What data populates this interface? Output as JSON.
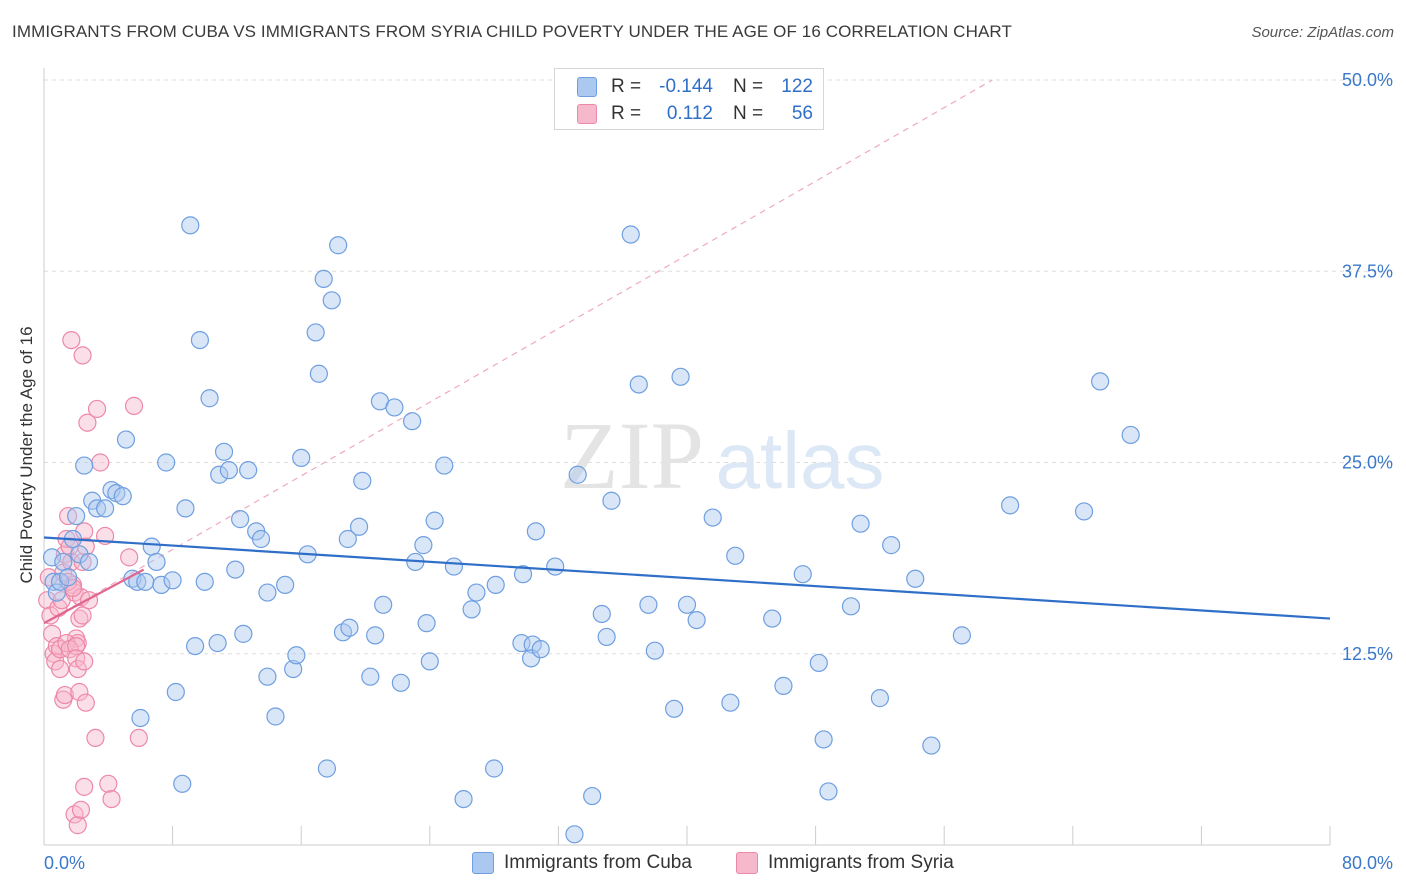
{
  "title": "IMMIGRANTS FROM CUBA VS IMMIGRANTS FROM SYRIA CHILD POVERTY UNDER THE AGE OF 16 CORRELATION CHART",
  "source": "Source: ZipAtlas.com",
  "watermark": {
    "zip": "ZIP",
    "atlas": "atlas"
  },
  "colors": {
    "cuba_fill": "#aac8f0",
    "cuba_stroke": "#6f9fe0",
    "cuba_line": "#2f6fc8",
    "syria_fill": "#f6b8cb",
    "syria_stroke": "#ee88a8",
    "syria_line": "#e0668e",
    "axis_text": "#3a78c9",
    "grid": "#dddddd"
  },
  "legend": {
    "rows": [
      {
        "r_label": "R =",
        "r_value": "-0.144",
        "n_label": "N =",
        "n_value": "122"
      },
      {
        "r_label": "R =",
        "r_value": "0.112",
        "n_label": "N =",
        "n_value": "56"
      }
    ]
  },
  "bottom_legend": [
    "Immigrants from Cuba",
    "Immigrants from Syria"
  ],
  "chart_data": {
    "type": "scatter",
    "title": "IMMIGRANTS FROM CUBA VS IMMIGRANTS FROM SYRIA CHILD POVERTY UNDER THE AGE OF 16 CORRELATION CHART",
    "xlabel": "",
    "ylabel": "Child Poverty Under the Age of 16",
    "xlim": [
      0,
      80
    ],
    "ylim": [
      0,
      50
    ],
    "x_tick_labels": [
      "0.0%",
      "80.0%"
    ],
    "y_ticks": [
      12.5,
      25.0,
      37.5,
      50.0
    ],
    "y_tick_labels": [
      "12.5%",
      "25.0%",
      "37.5%",
      "50.0%"
    ],
    "grid": true,
    "legend_position": "top-center",
    "series": [
      {
        "name": "Immigrants from Cuba",
        "trend": {
          "x": [
            0,
            80
          ],
          "y": [
            20.1,
            14.8
          ]
        },
        "points": [
          [
            0.5,
            18.8
          ],
          [
            0.6,
            17.2
          ],
          [
            0.8,
            16.5
          ],
          [
            1.0,
            17.2
          ],
          [
            1.2,
            18.5
          ],
          [
            1.5,
            17.5
          ],
          [
            1.8,
            20.0
          ],
          [
            2.0,
            21.5
          ],
          [
            2.2,
            19.0
          ],
          [
            2.5,
            24.8
          ],
          [
            2.8,
            18.5
          ],
          [
            3.0,
            22.5
          ],
          [
            3.3,
            22.0
          ],
          [
            3.8,
            22.0
          ],
          [
            4.2,
            23.2
          ],
          [
            4.5,
            23.0
          ],
          [
            4.9,
            22.8
          ],
          [
            5.1,
            26.5
          ],
          [
            5.5,
            17.4
          ],
          [
            5.8,
            17.2
          ],
          [
            6.0,
            8.3
          ],
          [
            6.3,
            17.2
          ],
          [
            6.7,
            19.5
          ],
          [
            7.0,
            18.5
          ],
          [
            7.3,
            17.0
          ],
          [
            7.6,
            25.0
          ],
          [
            8.0,
            17.3
          ],
          [
            8.2,
            10.0
          ],
          [
            8.6,
            4.0
          ],
          [
            8.8,
            22.0
          ],
          [
            9.1,
            40.5
          ],
          [
            9.4,
            13.0
          ],
          [
            9.7,
            33.0
          ],
          [
            10.0,
            17.2
          ],
          [
            10.3,
            29.2
          ],
          [
            10.8,
            13.2
          ],
          [
            10.9,
            24.2
          ],
          [
            11.2,
            25.7
          ],
          [
            11.5,
            24.5
          ],
          [
            11.9,
            18.0
          ],
          [
            12.2,
            21.3
          ],
          [
            12.4,
            13.8
          ],
          [
            12.7,
            24.5
          ],
          [
            13.2,
            20.5
          ],
          [
            13.5,
            20.0
          ],
          [
            13.9,
            11.0
          ],
          [
            13.9,
            16.5
          ],
          [
            14.4,
            8.4
          ],
          [
            15.0,
            17.0
          ],
          [
            15.5,
            11.5
          ],
          [
            15.7,
            12.4
          ],
          [
            16.0,
            25.3
          ],
          [
            16.4,
            19.0
          ],
          [
            16.9,
            33.5
          ],
          [
            17.1,
            30.8
          ],
          [
            17.4,
            37.0
          ],
          [
            17.6,
            5.0
          ],
          [
            17.9,
            35.6
          ],
          [
            18.3,
            39.2
          ],
          [
            18.6,
            13.9
          ],
          [
            18.9,
            20.0
          ],
          [
            19.0,
            14.2
          ],
          [
            19.6,
            20.8
          ],
          [
            19.8,
            23.8
          ],
          [
            20.3,
            11.0
          ],
          [
            20.6,
            13.7
          ],
          [
            20.9,
            29.0
          ],
          [
            21.1,
            15.7
          ],
          [
            21.8,
            28.6
          ],
          [
            22.2,
            10.6
          ],
          [
            22.9,
            27.7
          ],
          [
            23.1,
            18.5
          ],
          [
            23.6,
            19.6
          ],
          [
            23.8,
            14.5
          ],
          [
            24.0,
            12.0
          ],
          [
            24.3,
            21.2
          ],
          [
            24.9,
            24.8
          ],
          [
            25.5,
            18.2
          ],
          [
            26.1,
            3.0
          ],
          [
            26.6,
            15.4
          ],
          [
            26.9,
            16.5
          ],
          [
            28.0,
            5.0
          ],
          [
            28.1,
            17.0
          ],
          [
            29.7,
            13.2
          ],
          [
            29.8,
            17.7
          ],
          [
            30.4,
            13.1
          ],
          [
            30.3,
            12.2
          ],
          [
            30.6,
            20.5
          ],
          [
            30.9,
            12.8
          ],
          [
            31.8,
            18.2
          ],
          [
            33.0,
            0.7
          ],
          [
            33.2,
            24.2
          ],
          [
            34.1,
            3.2
          ],
          [
            34.7,
            15.1
          ],
          [
            35.0,
            13.6
          ],
          [
            35.3,
            22.5
          ],
          [
            36.5,
            39.9
          ],
          [
            37.0,
            30.1
          ],
          [
            37.6,
            15.7
          ],
          [
            38.0,
            12.7
          ],
          [
            39.2,
            8.9
          ],
          [
            39.6,
            30.6
          ],
          [
            40.0,
            15.7
          ],
          [
            40.6,
            14.7
          ],
          [
            41.6,
            21.4
          ],
          [
            42.7,
            9.3
          ],
          [
            43.0,
            18.9
          ],
          [
            45.3,
            14.8
          ],
          [
            46.0,
            10.4
          ],
          [
            47.2,
            17.7
          ],
          [
            48.2,
            11.9
          ],
          [
            48.5,
            6.9
          ],
          [
            48.8,
            3.5
          ],
          [
            50.2,
            15.6
          ],
          [
            50.8,
            21.0
          ],
          [
            52.0,
            9.6
          ],
          [
            52.7,
            19.6
          ],
          [
            54.2,
            17.4
          ],
          [
            55.2,
            6.5
          ],
          [
            57.1,
            13.7
          ],
          [
            60.1,
            22.2
          ],
          [
            64.7,
            21.8
          ],
          [
            65.7,
            30.3
          ],
          [
            67.6,
            26.8
          ]
        ]
      },
      {
        "name": "Immigrants from Syria",
        "trend": {
          "x": [
            0,
            6.2
          ],
          "y": [
            14.5,
            18.0
          ]
        },
        "trend_extended": {
          "x": [
            0,
            59
          ],
          "y": [
            14.5,
            50.0
          ]
        },
        "points": [
          [
            0.2,
            16.0
          ],
          [
            0.3,
            17.5
          ],
          [
            0.4,
            15.0
          ],
          [
            0.5,
            13.8
          ],
          [
            0.6,
            12.5
          ],
          [
            0.7,
            12.0
          ],
          [
            0.8,
            13.0
          ],
          [
            0.9,
            15.5
          ],
          [
            1.0,
            12.8
          ],
          [
            1.1,
            16.0
          ],
          [
            1.2,
            17.8
          ],
          [
            1.3,
            19.0
          ],
          [
            1.4,
            20.0
          ],
          [
            1.5,
            21.5
          ],
          [
            1.6,
            19.5
          ],
          [
            1.7,
            18.5
          ],
          [
            1.8,
            17.0
          ],
          [
            1.9,
            16.5
          ],
          [
            2.0,
            13.5
          ],
          [
            2.1,
            13.2
          ],
          [
            2.2,
            14.8
          ],
          [
            2.3,
            16.2
          ],
          [
            2.4,
            18.5
          ],
          [
            2.5,
            20.5
          ],
          [
            2.6,
            19.5
          ],
          [
            1.0,
            11.5
          ],
          [
            1.2,
            9.5
          ],
          [
            1.3,
            9.8
          ],
          [
            1.4,
            13.2
          ],
          [
            1.6,
            12.8
          ],
          [
            1.5,
            17.2
          ],
          [
            1.8,
            16.8
          ],
          [
            2.0,
            13.0
          ],
          [
            2.0,
            12.2
          ],
          [
            2.1,
            11.5
          ],
          [
            2.2,
            10.0
          ],
          [
            2.4,
            15.0
          ],
          [
            2.5,
            12.0
          ],
          [
            2.6,
            9.3
          ],
          [
            1.7,
            33.0
          ],
          [
            2.4,
            32.0
          ],
          [
            2.7,
            27.6
          ],
          [
            3.3,
            28.5
          ],
          [
            2.8,
            16.0
          ],
          [
            3.2,
            7.0
          ],
          [
            3.5,
            25.0
          ],
          [
            3.8,
            20.2
          ],
          [
            4.0,
            4.0
          ],
          [
            4.2,
            3.0
          ],
          [
            5.3,
            18.8
          ],
          [
            5.6,
            28.7
          ],
          [
            5.9,
            7.0
          ],
          [
            1.9,
            2.0
          ],
          [
            2.1,
            1.3
          ],
          [
            2.3,
            2.3
          ],
          [
            2.5,
            3.8
          ]
        ]
      }
    ]
  }
}
